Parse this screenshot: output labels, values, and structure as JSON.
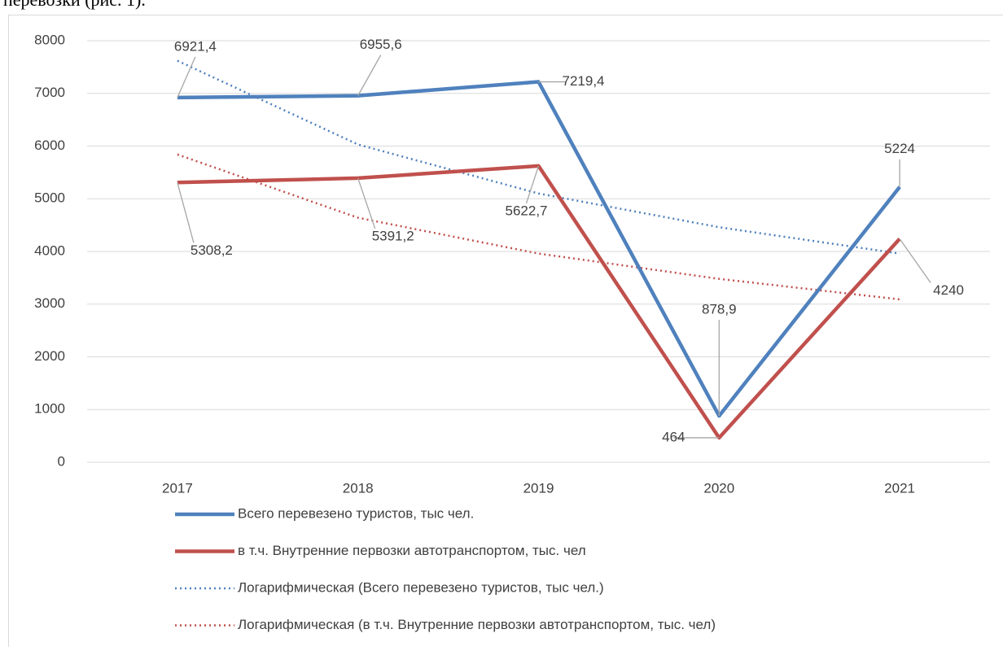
{
  "context_text": "перевозки (рис. 1).",
  "chart_data": {
    "type": "line",
    "categories": [
      "2017",
      "2018",
      "2019",
      "2020",
      "2021"
    ],
    "ylim": [
      0,
      8000
    ],
    "yticks": [
      0,
      1000,
      2000,
      3000,
      4000,
      5000,
      6000,
      7000,
      8000
    ],
    "grid": true,
    "series": [
      {
        "name": "Всего перевезено туристов, тыс чел.",
        "color": "#4f81bd",
        "style": "solid",
        "values": [
          6921.4,
          6955.6,
          7219.4,
          878.9,
          5224
        ],
        "value_labels": [
          "6921,4",
          "6955,6",
          "7219,4",
          "878,9",
          "5224"
        ]
      },
      {
        "name": "в т.ч. Внутренние первозки автотранспортом, тыс. чел",
        "color": "#c0504d",
        "style": "solid",
        "values": [
          5308.2,
          5391.2,
          5622.7,
          464,
          4240
        ],
        "value_labels": [
          "5308,2",
          "5391,2",
          "5622,7",
          "464",
          "4240"
        ]
      },
      {
        "name": "Логарифмическая (Всего перевезено туристов, тыс чел.)",
        "color": "#4f81bd",
        "style": "dotted",
        "values": [
          7620,
          6030,
          5100,
          4460,
          3960
        ]
      },
      {
        "name": "Логарифмическая (в т.ч. Внутренние первозки автотранспортом, тыс. чел)",
        "color": "#c0504d",
        "style": "dotted",
        "values": [
          5840,
          4640,
          3960,
          3480,
          3090
        ]
      }
    ],
    "legend": "bottom"
  }
}
